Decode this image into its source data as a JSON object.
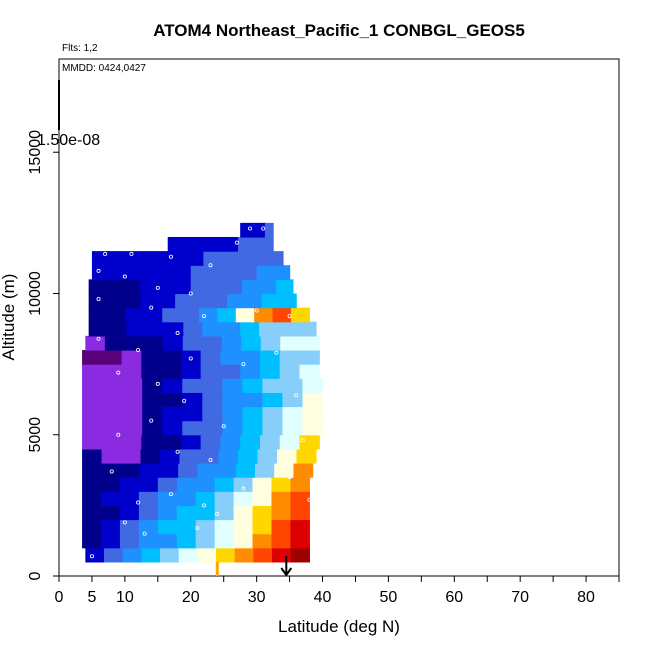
{
  "chart_data": {
    "type": "heatmap",
    "title": "ATOM4 Northeast_Pacific_1 CONBGL_GEOS5",
    "flights_label": "Flts: 1,2",
    "dates_label": "MMDD: 0424,0427",
    "color_scale_label": "1.50e-08",
    "xlabel": "Latitude (deg N)",
    "ylabel": "Altitude (m)",
    "xlim": [
      0,
      85
    ],
    "ylim": [
      0,
      18300
    ],
    "x_ticks": [
      0,
      5,
      10,
      20,
      30,
      40,
      50,
      60,
      70,
      80
    ],
    "x_minor_ticks": [
      15,
      25,
      35,
      45,
      55,
      65,
      75,
      85
    ],
    "y_ticks": [
      0,
      5000,
      10000,
      15000
    ],
    "grid": false,
    "legend": "none",
    "marker_latitude": 34.5,
    "colormap": [
      "#5a0078",
      "#8a2be2",
      "#00008b",
      "#0000cd",
      "#4169e1",
      "#1e90ff",
      "#00bfff",
      "#87cefa",
      "#e0ffff",
      "#ffffe0",
      "#ffd700",
      "#ff8c00",
      "#ff4500",
      "#dc0000",
      "#a00000"
    ],
    "rows": [
      {
        "alt_min": 500,
        "alt_max": 1000,
        "lat_min": 4,
        "lat_max": 38,
        "values": [
          3,
          4,
          5,
          6,
          7,
          8,
          9,
          10,
          11,
          12,
          13,
          14
        ]
      },
      {
        "alt_min": 1000,
        "alt_max": 1500,
        "lat_min": 3.5,
        "lat_max": 38,
        "values": [
          2,
          3,
          4,
          5,
          5,
          6,
          7,
          8,
          9,
          11,
          12,
          13
        ]
      },
      {
        "alt_min": 1500,
        "alt_max": 2000,
        "lat_min": 3.5,
        "lat_max": 38,
        "values": [
          2,
          3,
          4,
          5,
          6,
          6,
          7,
          8,
          9,
          10,
          12,
          13
        ]
      },
      {
        "alt_min": 2000,
        "alt_max": 2500,
        "lat_min": 3.5,
        "lat_max": 38,
        "values": [
          2,
          2,
          3,
          4,
          5,
          6,
          6,
          7,
          9,
          10,
          11,
          12
        ]
      },
      {
        "alt_min": 2500,
        "alt_max": 3000,
        "lat_min": 3.5,
        "lat_max": 38,
        "values": [
          2,
          3,
          3,
          4,
          5,
          5,
          6,
          7,
          8,
          9,
          11,
          12
        ]
      },
      {
        "alt_min": 3000,
        "alt_max": 3500,
        "lat_min": 3.5,
        "lat_max": 38,
        "values": [
          2,
          2,
          3,
          3,
          4,
          5,
          5,
          6,
          7,
          9,
          10,
          11
        ]
      },
      {
        "alt_min": 3500,
        "alt_max": 4000,
        "lat_min": 3.5,
        "lat_max": 38.5,
        "values": [
          2,
          2,
          2,
          3,
          3,
          4,
          5,
          5,
          6,
          7,
          9,
          11
        ]
      },
      {
        "alt_min": 4000,
        "alt_max": 4500,
        "lat_min": 3.5,
        "lat_max": 39,
        "values": [
          2,
          1,
          1,
          2,
          3,
          4,
          4,
          5,
          6,
          7,
          9,
          10
        ]
      },
      {
        "alt_min": 4500,
        "alt_max": 5000,
        "lat_min": 3.5,
        "lat_max": 39.5,
        "values": [
          1,
          1,
          1,
          2,
          2,
          3,
          4,
          5,
          6,
          7,
          8,
          10
        ]
      },
      {
        "alt_min": 5000,
        "alt_max": 5500,
        "lat_min": 3.5,
        "lat_max": 40,
        "values": [
          1,
          1,
          1,
          2,
          3,
          4,
          4,
          5,
          6,
          7,
          8,
          9
        ]
      },
      {
        "alt_min": 5500,
        "alt_max": 6000,
        "lat_min": 3.5,
        "lat_max": 40,
        "values": [
          1,
          1,
          1,
          2,
          3,
          3,
          4,
          5,
          6,
          7,
          8,
          9
        ]
      },
      {
        "alt_min": 6000,
        "alt_max": 6500,
        "lat_min": 3.5,
        "lat_max": 40,
        "values": [
          1,
          1,
          1,
          2,
          2,
          3,
          4,
          5,
          5,
          6,
          7,
          9
        ]
      },
      {
        "alt_min": 6500,
        "alt_max": 7000,
        "lat_min": 3.5,
        "lat_max": 40,
        "values": [
          1,
          1,
          1,
          2,
          3,
          4,
          4,
          5,
          6,
          7,
          7,
          8
        ]
      },
      {
        "alt_min": 7000,
        "alt_max": 7500,
        "lat_min": 3.5,
        "lat_max": 39.5,
        "values": [
          1,
          1,
          1,
          2,
          2,
          3,
          4,
          4,
          5,
          6,
          7,
          8
        ]
      },
      {
        "alt_min": 7500,
        "alt_max": 8000,
        "lat_min": 3.5,
        "lat_max": 39.5,
        "values": [
          0,
          0,
          1,
          2,
          2,
          3,
          4,
          5,
          5,
          6,
          7,
          7
        ]
      },
      {
        "alt_min": 8000,
        "alt_max": 8500,
        "lat_min": 4,
        "lat_max": 39.5,
        "values": [
          1,
          2,
          2,
          2,
          3,
          4,
          4,
          5,
          6,
          7,
          8,
          8
        ]
      },
      {
        "alt_min": 8500,
        "alt_max": 9000,
        "lat_min": 4.5,
        "lat_max": 39,
        "values": [
          2,
          2,
          3,
          3,
          3,
          4,
          5,
          5,
          6,
          7,
          7,
          7
        ]
      },
      {
        "alt_min": 9000,
        "alt_max": 9500,
        "lat_min": 4.5,
        "lat_max": 38,
        "values": [
          2,
          2,
          3,
          3,
          4,
          4,
          5,
          6,
          9,
          11,
          12,
          10
        ]
      },
      {
        "alt_min": 9500,
        "alt_max": 10000,
        "lat_min": 4.5,
        "lat_max": 36,
        "values": [
          2,
          2,
          2,
          3,
          3,
          4,
          4,
          4,
          5,
          5,
          6,
          6
        ]
      },
      {
        "alt_min": 10000,
        "alt_max": 10500,
        "lat_min": 4.5,
        "lat_max": 35.5,
        "values": [
          2,
          2,
          2,
          3,
          3,
          3,
          4,
          4,
          4,
          5,
          5,
          6
        ]
      },
      {
        "alt_min": 10500,
        "alt_max": 11000,
        "lat_min": 5,
        "lat_max": 35,
        "values": [
          3,
          3,
          3,
          3,
          3,
          3,
          4,
          4,
          4,
          4,
          5,
          5
        ]
      },
      {
        "alt_min": 11000,
        "alt_max": 11500,
        "lat_min": 5,
        "lat_max": 34,
        "values": [
          3,
          3,
          3,
          3,
          3,
          3,
          3,
          4,
          4,
          4,
          4,
          4
        ]
      },
      {
        "alt_min": 11500,
        "alt_max": 12000,
        "lat_min": 16.5,
        "lat_max": 32.5,
        "values": [
          3,
          3,
          3,
          3,
          3,
          3,
          4,
          4,
          4
        ]
      },
      {
        "alt_min": 12000,
        "alt_max": 12500,
        "lat_min": 27.5,
        "lat_max": 32.5,
        "values": [
          3,
          3,
          3,
          4
        ]
      }
    ],
    "observation_points": [
      {
        "x": 5,
        "y": 700
      },
      {
        "x": 10,
        "y": 1900
      },
      {
        "x": 13,
        "y": 1500
      },
      {
        "x": 17,
        "y": 2900
      },
      {
        "x": 21,
        "y": 1700
      },
      {
        "x": 24,
        "y": 2200
      },
      {
        "x": 28,
        "y": 3100
      },
      {
        "x": 22,
        "y": 2500
      },
      {
        "x": 8,
        "y": 3700
      },
      {
        "x": 12,
        "y": 2600
      },
      {
        "x": 18,
        "y": 4400
      },
      {
        "x": 23,
        "y": 4100
      },
      {
        "x": 9,
        "y": 5000
      },
      {
        "x": 14,
        "y": 5500
      },
      {
        "x": 19,
        "y": 6200
      },
      {
        "x": 25,
        "y": 5300
      },
      {
        "x": 9,
        "y": 7200
      },
      {
        "x": 15,
        "y": 6800
      },
      {
        "x": 20,
        "y": 7700
      },
      {
        "x": 28,
        "y": 7500
      },
      {
        "x": 6,
        "y": 8400
      },
      {
        "x": 12,
        "y": 8000
      },
      {
        "x": 18,
        "y": 8600
      },
      {
        "x": 33,
        "y": 7900
      },
      {
        "x": 6,
        "y": 9800
      },
      {
        "x": 14,
        "y": 9500
      },
      {
        "x": 22,
        "y": 9200
      },
      {
        "x": 30,
        "y": 9400
      },
      {
        "x": 6,
        "y": 10800
      },
      {
        "x": 10,
        "y": 10600
      },
      {
        "x": 15,
        "y": 10200
      },
      {
        "x": 20,
        "y": 10000
      },
      {
        "x": 7,
        "y": 11400
      },
      {
        "x": 11,
        "y": 11400
      },
      {
        "x": 17,
        "y": 11300
      },
      {
        "x": 23,
        "y": 11000
      },
      {
        "x": 27,
        "y": 11800
      },
      {
        "x": 29,
        "y": 12300
      },
      {
        "x": 31,
        "y": 12300
      },
      {
        "x": 35,
        "y": 9200
      },
      {
        "x": 36,
        "y": 6400
      },
      {
        "x": 37,
        "y": 4800
      },
      {
        "x": 38,
        "y": 2700
      },
      {
        "x": 35,
        "y": 3500
      }
    ]
  }
}
